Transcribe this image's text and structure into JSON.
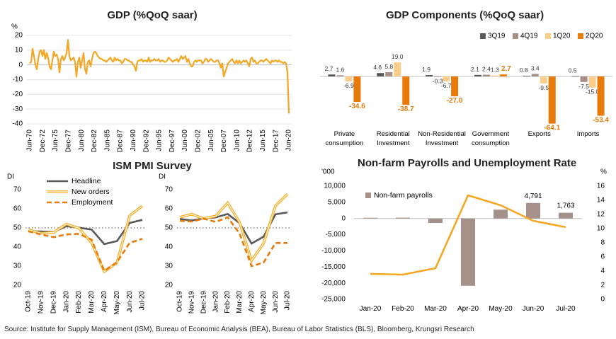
{
  "charts": [
    {
      "type": "line",
      "title": "GDP (%QoQ saar)",
      "ylabel": "%",
      "ylim": [
        -40,
        20
      ],
      "yticks": [
        20,
        10,
        0,
        -10,
        -20,
        -30,
        -40
      ],
      "xtick_labels": [
        "Jun-70",
        "Dec-72",
        "Jun-75",
        "Dec-77",
        "Jun-80",
        "Dec-82",
        "Jun-85",
        "Dec-87",
        "Jun-90",
        "Dec-92",
        "Jun-95",
        "Dec-97",
        "Jun-00",
        "Dec-02",
        "Jun-05",
        "Dec-07",
        "Jun-10",
        "Dec-12",
        "Jun-15",
        "Dec-17",
        "Jun-20"
      ],
      "series": [
        {
          "color": "#F5A623",
          "x_start": "Jun-70",
          "x_end": "Jun-20",
          "values": [
            1,
            2,
            11,
            6,
            0,
            -3,
            4,
            9,
            10,
            6,
            10,
            4,
            8,
            5,
            -1,
            -3,
            3,
            9,
            6,
            7,
            4,
            -5,
            4,
            6,
            3,
            5,
            8,
            17,
            6,
            3,
            4,
            5,
            2,
            -8,
            2,
            5,
            -2,
            3,
            8,
            -3,
            -6,
            2,
            3,
            -1,
            4,
            8,
            9,
            8,
            6,
            5,
            4,
            4,
            3,
            3,
            2,
            3,
            4,
            5,
            3,
            2,
            5,
            3,
            4,
            3,
            3,
            1,
            2,
            4,
            4,
            3,
            3,
            2,
            2,
            0,
            -1,
            -4,
            2,
            3,
            3,
            4,
            2,
            3,
            3,
            2,
            5,
            2,
            3,
            3,
            4,
            3,
            3,
            4,
            2,
            3,
            3,
            2,
            2,
            3,
            5,
            4,
            3,
            2,
            3,
            3,
            4,
            2,
            4,
            6,
            4,
            5,
            6,
            2,
            4,
            1,
            -1,
            -1,
            2,
            3,
            2,
            3,
            3,
            3,
            1,
            2,
            4,
            4,
            2,
            3,
            4,
            3,
            2,
            2,
            3,
            3,
            1,
            -2,
            1,
            -8,
            -5,
            -2,
            1,
            2,
            3,
            4,
            2,
            1,
            3,
            1,
            3,
            1,
            2,
            3,
            2,
            3,
            1,
            -1,
            4,
            5,
            2,
            3,
            1,
            1,
            2,
            3,
            3,
            2,
            3,
            4,
            3,
            2,
            1,
            3,
            2,
            3,
            3,
            2,
            3,
            2,
            2,
            1,
            2,
            1,
            -5,
            -33
          ]
        }
      ]
    },
    {
      "type": "bar",
      "title": "GDP Components (%QoQ saar)",
      "categories": [
        "Private\nconsumption",
        "Residential\nInvestment",
        "Non-Residential\nInvestment",
        "Government\nconsumption",
        "Exports",
        "Imports"
      ],
      "series": [
        {
          "name": "3Q19",
          "color": "#595959",
          "values": [
            2.7,
            4.6,
            1.9,
            2.1,
            0.8,
            0.5
          ]
        },
        {
          "name": "4Q19",
          "color": "#A6908A",
          "values": [
            1.6,
            5.8,
            -0.3,
            2.4,
            3.4,
            -7.5
          ]
        },
        {
          "name": "1Q20",
          "color": "#FACE8A",
          "values": [
            -6.9,
            19.0,
            -6.7,
            1.3,
            -9.5,
            -15.0
          ]
        },
        {
          "name": "2Q20",
          "color": "#E87A0A",
          "values": [
            -34.6,
            -38.7,
            -27.0,
            2.7,
            -64.1,
            -53.4
          ]
        }
      ],
      "value_labels": [
        [
          "2.7",
          "1.6",
          "-6.9",
          "-34.6"
        ],
        [
          "4.6",
          "5.8",
          "19.0",
          "-38.7"
        ],
        [
          "1.9",
          "-0.3",
          "-6.7",
          "-27.0"
        ],
        [
          "2.1",
          "2.4",
          "1.3",
          "2.7"
        ],
        [
          "0.8",
          "3.4",
          "-9.5",
          "-64.1"
        ],
        [
          "0.5",
          "-7.5",
          "-15.0",
          "-53.4"
        ]
      ]
    },
    {
      "type": "line",
      "title": "ISM PMI Survey",
      "ylabel": "DI",
      "ylim": [
        20,
        70
      ],
      "yticks": [
        70,
        60,
        50,
        40,
        30,
        20
      ],
      "categories": [
        "Oct-19",
        "Nov-19",
        "Dec-19",
        "Jan-20",
        "Feb-20",
        "Mar-20",
        "Apr-20",
        "May-20",
        "Jun-20",
        "Jul-20"
      ],
      "reference_line": 50,
      "legend": [
        "Headline",
        "New orders",
        "Employment"
      ],
      "panels": [
        {
          "series": [
            {
              "name": "Headline",
              "color": "#595959",
              "values": [
                48.3,
                48.1,
                47.8,
                50.9,
                50.1,
                49.1,
                41.5,
                43.1,
                52.6,
                54.2
              ]
            },
            {
              "name": "New orders",
              "color": "#F5C242",
              "values": [
                49.1,
                47.2,
                47.6,
                52.0,
                49.8,
                42.2,
                27.1,
                31.8,
                56.4,
                61.5
              ]
            },
            {
              "name": "Employment",
              "color": "#E87A0A",
              "values": [
                48.2,
                46.6,
                45.1,
                46.6,
                46.9,
                43.8,
                27.5,
                32.1,
                42.1,
                44.3
              ]
            }
          ]
        },
        {
          "series": [
            {
              "name": "Headline",
              "color": "#595959",
              "values": [
                54.7,
                53.9,
                55.0,
                55.5,
                57.3,
                52.5,
                41.8,
                45.4,
                57.1,
                58.1
              ]
            },
            {
              "name": "New orders",
              "color": "#F5C242",
              "values": [
                55.6,
                57.1,
                54.9,
                56.2,
                63.1,
                52.9,
                32.9,
                41.9,
                61.6,
                67.7
              ]
            },
            {
              "name": "Employment",
              "color": "#E87A0A",
              "values": [
                53.7,
                53.3,
                54.8,
                53.1,
                55.6,
                47.0,
                30.0,
                31.8,
                42.1,
                42.1
              ]
            }
          ]
        }
      ]
    },
    {
      "type": "bar+line",
      "title": "Non-farm Payrolls and Unemployment Rate",
      "ylabel_left": "'000",
      "ylabel_right": "%",
      "ylim_left": [
        -25000,
        10000
      ],
      "ylim_right": [
        0,
        16
      ],
      "yticks_left": [
        "10,000",
        "5,000",
        "0",
        "-5,000",
        "-10,000",
        "-15,000",
        "-20,000",
        "-25,000"
      ],
      "yticks_right": [
        "16",
        "14",
        "12",
        "10",
        "8",
        "6",
        "4",
        "2",
        "0"
      ],
      "categories": [
        "Jan-20",
        "Feb-20",
        "Mar-20",
        "Apr-20",
        "May-20",
        "Jun-20",
        "Jul-20"
      ],
      "series": [
        {
          "name": "Non-farm payrolls",
          "type": "bar",
          "color": "#A6908A",
          "values": [
            214,
            251,
            -1373,
            -20787,
            2725,
            4791,
            1763
          ]
        },
        {
          "type": "line",
          "axis": "right",
          "color": "#F5A623",
          "values": [
            3.6,
            3.5,
            4.4,
            14.7,
            13.3,
            11.1,
            10.2
          ]
        }
      ],
      "data_labels": [
        "4,791",
        "1,763"
      ]
    }
  ],
  "source": "Source: Institute for Supply Management (ISM), Bureau of Economic Analysis (BEA), Bureau of Labor Statistics (BLS), Bloomberg, Krungsri Research"
}
